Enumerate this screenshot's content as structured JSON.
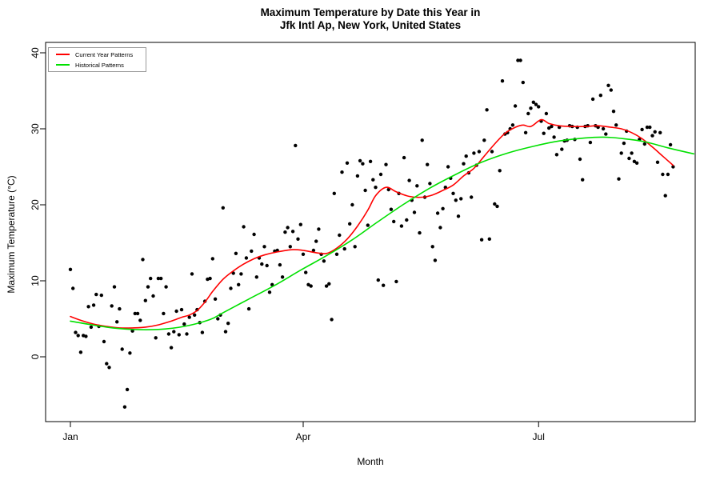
{
  "title": {
    "line1": "Maximum Temperature by Date this Year in",
    "line2": "Jfk Intl Ap, New York, United States"
  },
  "axes": {
    "x_label": "Month",
    "y_label": "Maximum Temperature (°C)",
    "x_ticks": [
      {
        "label": "Jan",
        "day": 1
      },
      {
        "label": "Apr",
        "day": 91
      },
      {
        "label": "Jul",
        "day": 182
      }
    ],
    "y_ticks": [
      {
        "label": "0",
        "value": 0
      },
      {
        "label": "10",
        "value": 10
      },
      {
        "label": "20",
        "value": 20
      },
      {
        "label": "30",
        "value": 30
      },
      {
        "label": "40",
        "value": 40
      }
    ]
  },
  "legend": {
    "items": [
      {
        "label": "Current Year Patterns"
      },
      {
        "label": "Historical Patterns"
      }
    ]
  },
  "chart_data": {
    "type": "scatter",
    "title": "Maximum Temperature by Date this Year in Jfk Intl Ap, New York, United States",
    "xlabel": "Month",
    "ylabel": "Maximum Temperature (°C)",
    "x_unit": "day_of_year_jan1_is_1",
    "x_axis_tick_days": [
      1,
      91,
      182
    ],
    "x_axis_tick_labels": [
      "Jan",
      "Apr",
      "Jul"
    ],
    "y_axis_ticks": [
      0,
      10,
      20,
      30,
      40
    ],
    "point_color": "#000000",
    "points": [
      [
        1,
        11.5
      ],
      [
        2,
        9.0
      ],
      [
        3,
        3.2
      ],
      [
        4,
        2.8
      ],
      [
        5,
        0.6
      ],
      [
        6,
        2.8
      ],
      [
        7,
        2.7
      ],
      [
        8,
        6.6
      ],
      [
        9,
        3.9
      ],
      [
        10,
        6.8
      ],
      [
        11,
        8.2
      ],
      [
        12,
        4.0
      ],
      [
        13,
        8.1
      ],
      [
        14,
        2.0
      ],
      [
        15,
        -0.9
      ],
      [
        16,
        -1.4
      ],
      [
        17,
        6.7
      ],
      [
        18,
        9.2
      ],
      [
        19,
        4.6
      ],
      [
        20,
        6.3
      ],
      [
        21,
        1.0
      ],
      [
        22,
        -6.6
      ],
      [
        23,
        -4.3
      ],
      [
        24,
        0.5
      ],
      [
        25,
        3.4
      ],
      [
        26,
        5.7
      ],
      [
        27,
        5.7
      ],
      [
        28,
        4.8
      ],
      [
        29,
        12.8
      ],
      [
        30,
        7.4
      ],
      [
        31,
        9.2
      ],
      [
        32,
        10.3
      ],
      [
        33,
        8.0
      ],
      [
        34,
        2.5
      ],
      [
        35,
        10.3
      ],
      [
        36,
        10.3
      ],
      [
        37,
        5.7
      ],
      [
        38,
        9.2
      ],
      [
        39,
        3.0
      ],
      [
        40,
        1.2
      ],
      [
        41,
        3.3
      ],
      [
        42,
        6.0
      ],
      [
        43,
        2.9
      ],
      [
        44,
        6.2
      ],
      [
        45,
        4.3
      ],
      [
        46,
        3.0
      ],
      [
        47,
        5.2
      ],
      [
        48,
        10.9
      ],
      [
        49,
        5.5
      ],
      [
        50,
        6.2
      ],
      [
        51,
        4.5
      ],
      [
        52,
        3.2
      ],
      [
        53,
        7.3
      ],
      [
        54,
        10.2
      ],
      [
        55,
        10.3
      ],
      [
        56,
        12.9
      ],
      [
        57,
        7.6
      ],
      [
        58,
        5.0
      ],
      [
        59,
        5.5
      ],
      [
        60,
        19.6
      ],
      [
        61,
        3.3
      ],
      [
        62,
        4.4
      ],
      [
        63,
        9.0
      ],
      [
        64,
        11.0
      ],
      [
        65,
        13.6
      ],
      [
        66,
        9.5
      ],
      [
        67,
        10.9
      ],
      [
        68,
        17.1
      ],
      [
        69,
        13.0
      ],
      [
        70,
        6.3
      ],
      [
        71,
        13.9
      ],
      [
        72,
        16.1
      ],
      [
        73,
        10.5
      ],
      [
        74,
        13.0
      ],
      [
        75,
        12.2
      ],
      [
        76,
        14.5
      ],
      [
        77,
        12.0
      ],
      [
        78,
        8.5
      ],
      [
        79,
        9.5
      ],
      [
        80,
        13.9
      ],
      [
        81,
        14.0
      ],
      [
        82,
        12.1
      ],
      [
        83,
        10.5
      ],
      [
        84,
        16.4
      ],
      [
        85,
        17.0
      ],
      [
        86,
        14.5
      ],
      [
        87,
        16.5
      ],
      [
        88,
        27.8
      ],
      [
        89,
        15.5
      ],
      [
        90,
        17.4
      ],
      [
        91,
        13.5
      ],
      [
        92,
        11.1
      ],
      [
        93,
        9.5
      ],
      [
        94,
        9.3
      ],
      [
        95,
        14.0
      ],
      [
        96,
        15.2
      ],
      [
        97,
        16.8
      ],
      [
        98,
        13.5
      ],
      [
        99,
        12.6
      ],
      [
        100,
        9.3
      ],
      [
        101,
        9.6
      ],
      [
        102,
        4.9
      ],
      [
        103,
        21.5
      ],
      [
        104,
        13.5
      ],
      [
        105,
        16.0
      ],
      [
        106,
        24.3
      ],
      [
        107,
        14.2
      ],
      [
        108,
        25.5
      ],
      [
        109,
        17.5
      ],
      [
        110,
        20.0
      ],
      [
        111,
        14.5
      ],
      [
        112,
        23.8
      ],
      [
        113,
        25.8
      ],
      [
        114,
        25.4
      ],
      [
        115,
        21.9
      ],
      [
        116,
        17.3
      ],
      [
        117,
        25.7
      ],
      [
        118,
        23.3
      ],
      [
        119,
        22.3
      ],
      [
        120,
        10.1
      ],
      [
        121,
        24.0
      ],
      [
        122,
        9.4
      ],
      [
        123,
        25.3
      ],
      [
        124,
        22.0
      ],
      [
        125,
        19.4
      ],
      [
        126,
        17.8
      ],
      [
        127,
        9.9
      ],
      [
        128,
        21.5
      ],
      [
        129,
        17.2
      ],
      [
        130,
        26.2
      ],
      [
        131,
        18.0
      ],
      [
        132,
        23.2
      ],
      [
        133,
        20.6
      ],
      [
        134,
        19.0
      ],
      [
        135,
        22.5
      ],
      [
        136,
        16.3
      ],
      [
        137,
        28.5
      ],
      [
        138,
        21.0
      ],
      [
        139,
        25.3
      ],
      [
        140,
        22.8
      ],
      [
        141,
        14.5
      ],
      [
        142,
        12.7
      ],
      [
        143,
        18.9
      ],
      [
        144,
        17.0
      ],
      [
        145,
        19.5
      ],
      [
        146,
        22.3
      ],
      [
        147,
        25.0
      ],
      [
        148,
        23.5
      ],
      [
        149,
        21.5
      ],
      [
        150,
        20.6
      ],
      [
        151,
        18.5
      ],
      [
        152,
        20.8
      ],
      [
        153,
        25.4
      ],
      [
        154,
        26.4
      ],
      [
        155,
        24.2
      ],
      [
        156,
        21.0
      ],
      [
        157,
        26.8
      ],
      [
        158,
        25.2
      ],
      [
        159,
        27.0
      ],
      [
        160,
        15.4
      ],
      [
        161,
        28.5
      ],
      [
        162,
        32.5
      ],
      [
        163,
        15.5
      ],
      [
        164,
        27.0
      ],
      [
        165,
        20.1
      ],
      [
        166,
        19.8
      ],
      [
        167,
        24.5
      ],
      [
        168,
        36.3
      ],
      [
        169,
        29.3
      ],
      [
        170,
        29.5
      ],
      [
        171,
        30.0
      ],
      [
        172,
        30.5
      ],
      [
        173,
        33.0
      ],
      [
        174,
        39.0
      ],
      [
        175,
        39.0
      ],
      [
        176,
        36.1
      ],
      [
        177,
        29.5
      ],
      [
        178,
        32.0
      ],
      [
        179,
        32.7
      ],
      [
        180,
        33.5
      ],
      [
        181,
        33.2
      ],
      [
        182,
        32.9
      ],
      [
        183,
        31.0
      ],
      [
        184,
        29.4
      ],
      [
        185,
        32.0
      ],
      [
        186,
        30.1
      ],
      [
        187,
        30.3
      ],
      [
        188,
        28.9
      ],
      [
        189,
        26.6
      ],
      [
        190,
        30.2
      ],
      [
        191,
        27.3
      ],
      [
        192,
        28.4
      ],
      [
        193,
        28.5
      ],
      [
        194,
        30.4
      ],
      [
        195,
        30.3
      ],
      [
        196,
        28.6
      ],
      [
        197,
        30.2
      ],
      [
        198,
        26.0
      ],
      [
        199,
        23.3
      ],
      [
        200,
        30.3
      ],
      [
        201,
        30.4
      ],
      [
        202,
        28.2
      ],
      [
        203,
        33.9
      ],
      [
        204,
        30.4
      ],
      [
        205,
        30.2
      ],
      [
        206,
        34.4
      ],
      [
        207,
        30.0
      ],
      [
        208,
        29.3
      ],
      [
        209,
        35.7
      ],
      [
        210,
        35.1
      ],
      [
        211,
        32.3
      ],
      [
        212,
        30.5
      ],
      [
        213,
        23.4
      ],
      [
        214,
        26.8
      ],
      [
        215,
        28.1
      ],
      [
        216,
        29.7
      ],
      [
        217,
        26.1
      ],
      [
        218,
        26.8
      ],
      [
        219,
        25.7
      ],
      [
        220,
        25.5
      ],
      [
        221,
        28.6
      ],
      [
        222,
        29.9
      ],
      [
        223,
        28.0
      ],
      [
        224,
        30.2
      ],
      [
        225,
        30.2
      ],
      [
        226,
        29.1
      ],
      [
        227,
        29.6
      ],
      [
        228,
        25.6
      ],
      [
        229,
        29.5
      ],
      [
        230,
        24.0
      ],
      [
        231,
        21.2
      ],
      [
        232,
        24.0
      ],
      [
        233,
        27.9
      ],
      [
        234,
        25.0
      ]
    ],
    "series": [
      {
        "name": "Current Year Patterns",
        "type": "line",
        "color": "#FF0000",
        "points": [
          [
            1,
            5.3
          ],
          [
            5,
            4.8
          ],
          [
            10,
            4.3
          ],
          [
            15,
            4.0
          ],
          [
            20,
            3.8
          ],
          [
            25,
            3.8
          ],
          [
            30,
            3.9
          ],
          [
            35,
            4.2
          ],
          [
            40,
            4.7
          ],
          [
            44,
            5.2
          ],
          [
            47,
            5.5
          ],
          [
            50,
            6.1
          ],
          [
            53,
            7.2
          ],
          [
            56,
            8.6
          ],
          [
            60,
            10.2
          ],
          [
            64,
            11.3
          ],
          [
            68,
            12.2
          ],
          [
            72,
            12.9
          ],
          [
            76,
            13.4
          ],
          [
            81,
            13.8
          ],
          [
            87,
            14.1
          ],
          [
            91,
            14.0
          ],
          [
            96,
            13.7
          ],
          [
            100,
            13.6
          ],
          [
            104,
            14.3
          ],
          [
            108,
            15.5
          ],
          [
            112,
            17.2
          ],
          [
            116,
            19.3
          ],
          [
            119,
            21.2
          ],
          [
            123,
            22.3
          ],
          [
            127,
            21.7
          ],
          [
            132,
            21.1
          ],
          [
            137,
            21.0
          ],
          [
            141,
            21.3
          ],
          [
            145,
            21.9
          ],
          [
            149,
            22.6
          ],
          [
            153,
            23.8
          ],
          [
            157,
            24.8
          ],
          [
            161,
            26.4
          ],
          [
            165,
            28.0
          ],
          [
            169,
            29.4
          ],
          [
            173,
            30.2
          ],
          [
            176,
            30.5
          ],
          [
            179,
            30.3
          ],
          [
            183,
            31.2
          ],
          [
            186,
            30.7
          ],
          [
            190,
            30.4
          ],
          [
            195,
            30.3
          ],
          [
            200,
            30.3
          ],
          [
            205,
            30.4
          ],
          [
            210,
            30.2
          ],
          [
            214,
            30.0
          ],
          [
            218,
            29.5
          ],
          [
            222,
            28.7
          ],
          [
            226,
            27.6
          ],
          [
            230,
            26.4
          ],
          [
            234,
            25.2
          ]
        ]
      },
      {
        "name": "Historical Patterns",
        "type": "line",
        "color": "#00E000",
        "points": [
          [
            1,
            4.7
          ],
          [
            15,
            3.9
          ],
          [
            25,
            3.6
          ],
          [
            35,
            3.6
          ],
          [
            45,
            4.0
          ],
          [
            55,
            4.9
          ],
          [
            60,
            5.8
          ],
          [
            70,
            7.6
          ],
          [
            80,
            9.4
          ],
          [
            90,
            11.4
          ],
          [
            100,
            13.3
          ],
          [
            110,
            15.4
          ],
          [
            120,
            17.8
          ],
          [
            130,
            20.1
          ],
          [
            140,
            22.2
          ],
          [
            150,
            24.0
          ],
          [
            160,
            25.6
          ],
          [
            170,
            26.8
          ],
          [
            180,
            27.7
          ],
          [
            190,
            28.4
          ],
          [
            200,
            28.8
          ],
          [
            207,
            28.9
          ],
          [
            215,
            28.7
          ],
          [
            223,
            28.3
          ],
          [
            232,
            27.5
          ],
          [
            242,
            26.7
          ]
        ]
      }
    ]
  }
}
